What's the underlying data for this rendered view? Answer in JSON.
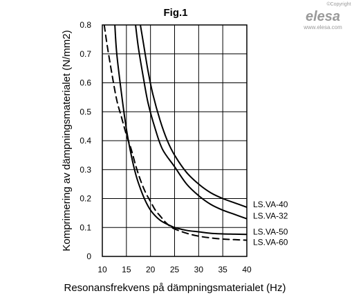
{
  "watermark": {
    "copyright": "©Copyright",
    "logo": "elesa",
    "url": "www.elesa.com"
  },
  "chart_data": {
    "type": "line",
    "title": "Fig.1",
    "xlabel": "Resonansfrekvens på dämpningsmaterialet (Hz)",
    "ylabel": "Komprimering av dämpningsmaterialet (N/mm2)",
    "xlim": [
      10,
      40
    ],
    "ylim": [
      0,
      0.8
    ],
    "grid": true,
    "x_ticks": [
      {
        "value": 10,
        "label": "10"
      },
      {
        "value": 15,
        "label": "15"
      },
      {
        "value": 20,
        "label": "20"
      },
      {
        "value": 25,
        "label": "25"
      },
      {
        "value": 30,
        "label": "30"
      },
      {
        "value": 35,
        "label": "35"
      },
      {
        "value": 40,
        "label": "40"
      }
    ],
    "y_ticks": [
      {
        "value": 0,
        "label": "0"
      },
      {
        "value": 0.1,
        "label": "0.1"
      },
      {
        "value": 0.2,
        "label": "0.2"
      },
      {
        "value": 0.3,
        "label": "0.3"
      },
      {
        "value": 0.4,
        "label": "0.4"
      },
      {
        "value": 0.5,
        "label": "0.5"
      },
      {
        "value": 0.6,
        "label": "0.6"
      },
      {
        "value": 0.7,
        "label": "0.7"
      },
      {
        "value": 0.8,
        "label": "0.8"
      }
    ],
    "series": [
      {
        "name": "LS.VA-40",
        "style": "solid",
        "color": "#000000",
        "x": [
          17.9,
          18.5,
          19.5,
          20.5,
          22,
          23.5,
          25,
          27.5,
          30,
          32.5,
          35,
          37.5,
          40
        ],
        "y": [
          0.8,
          0.74,
          0.64,
          0.56,
          0.47,
          0.4,
          0.35,
          0.29,
          0.25,
          0.22,
          0.2,
          0.185,
          0.17
        ]
      },
      {
        "name": "LS.VA-32",
        "style": "solid",
        "color": "#000000",
        "x": [
          16.9,
          17.5,
          18.5,
          19.5,
          21,
          22.5,
          25,
          27.5,
          30,
          32.5,
          35,
          37.5,
          40
        ],
        "y": [
          0.8,
          0.72,
          0.62,
          0.53,
          0.44,
          0.37,
          0.31,
          0.25,
          0.21,
          0.18,
          0.16,
          0.145,
          0.13
        ]
      },
      {
        "name": "LS.VA-50",
        "style": "solid",
        "color": "#000000",
        "x": [
          12.6,
          13,
          14,
          15,
          16,
          17,
          18,
          19,
          20,
          21,
          22,
          23,
          24,
          25,
          27.5,
          30,
          32.5,
          35,
          37.5,
          40
        ],
        "y": [
          0.8,
          0.7,
          0.56,
          0.44,
          0.35,
          0.28,
          0.23,
          0.19,
          0.16,
          0.14,
          0.125,
          0.115,
          0.107,
          0.1,
          0.09,
          0.085,
          0.08,
          0.078,
          0.077,
          0.076
        ]
      },
      {
        "name": "LS.VA-60",
        "style": "dashed",
        "color": "#000000",
        "x": [
          10.4,
          11,
          12,
          13,
          14,
          15,
          16,
          17,
          18,
          19,
          20,
          21,
          22,
          23,
          24,
          25,
          27.5,
          30,
          32.5,
          35,
          37.5,
          40
        ],
        "y": [
          0.8,
          0.73,
          0.63,
          0.54,
          0.48,
          0.42,
          0.37,
          0.31,
          0.26,
          0.22,
          0.19,
          0.16,
          0.14,
          0.12,
          0.105,
          0.095,
          0.08,
          0.07,
          0.064,
          0.06,
          0.058,
          0.056
        ]
      }
    ],
    "legend": [
      {
        "label": "LS.VA-40",
        "series": "LS.VA-40"
      },
      {
        "label": "LS.VA-32",
        "series": "LS.VA-32"
      },
      {
        "label": "LS.VA-50",
        "series": "LS.VA-50"
      },
      {
        "label": "LS.VA-60",
        "series": "LS.VA-60"
      }
    ]
  }
}
